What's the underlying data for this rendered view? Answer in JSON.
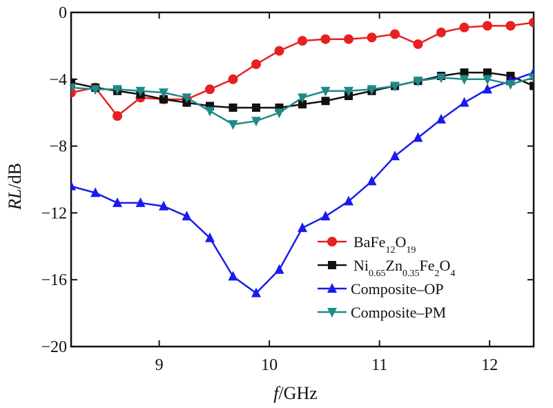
{
  "chart_data": {
    "type": "line",
    "xlabel": "f/GHz",
    "ylabel": "RL/dB",
    "xlim": [
      8.2,
      12.4
    ],
    "ylim": [
      -20,
      0
    ],
    "x_ticks": [
      9,
      10,
      11,
      12
    ],
    "y_ticks": [
      0,
      -4,
      -8,
      -12,
      -16,
      -20
    ],
    "x_tick_labels": [
      "9",
      "10",
      "11",
      "12"
    ],
    "y_tick_labels": [
      "0",
      "−4",
      "−8",
      "−12",
      "−16",
      "−20"
    ],
    "grid": false,
    "legend_position": "center-right",
    "series": [
      {
        "name": "BaFe12O19",
        "label_parts": [
          {
            "text": "BaFe",
            "sub": false
          },
          {
            "text": "12",
            "sub": true
          },
          {
            "text": "O",
            "sub": false
          },
          {
            "text": "19",
            "sub": true
          }
        ],
        "color": "#e82020",
        "marker": "circle",
        "x": [
          8.2,
          8.42,
          8.62,
          8.83,
          9.04,
          9.25,
          9.46,
          9.67,
          9.88,
          10.09,
          10.3,
          10.51,
          10.72,
          10.93,
          11.14,
          11.35,
          11.56,
          11.77,
          11.98,
          12.19,
          12.4
        ],
        "y": [
          -4.8,
          -4.5,
          -6.2,
          -5.1,
          -5.2,
          -5.2,
          -4.6,
          -4.0,
          -3.1,
          -2.3,
          -1.7,
          -1.6,
          -1.6,
          -1.5,
          -1.3,
          -1.9,
          -1.2,
          -0.9,
          -0.8,
          -0.8,
          -0.6
        ]
      },
      {
        "name": "Ni0.65Zn0.35Fe2O4",
        "label_parts": [
          {
            "text": "Ni",
            "sub": false
          },
          {
            "text": "0.65",
            "sub": true
          },
          {
            "text": "Zn",
            "sub": false
          },
          {
            "text": "0.35",
            "sub": true
          },
          {
            "text": "Fe",
            "sub": false
          },
          {
            "text": "2",
            "sub": true
          },
          {
            "text": "O",
            "sub": false
          },
          {
            "text": "4",
            "sub": true
          }
        ],
        "color": "#111111",
        "marker": "square",
        "x": [
          8.2,
          8.42,
          8.62,
          8.83,
          9.04,
          9.25,
          9.46,
          9.67,
          9.88,
          10.09,
          10.3,
          10.51,
          10.72,
          10.93,
          11.14,
          11.35,
          11.56,
          11.77,
          11.98,
          12.19,
          12.4
        ],
        "y": [
          -4.2,
          -4.5,
          -4.7,
          -4.9,
          -5.2,
          -5.4,
          -5.6,
          -5.7,
          -5.7,
          -5.7,
          -5.5,
          -5.3,
          -5.0,
          -4.7,
          -4.4,
          -4.1,
          -3.8,
          -3.6,
          -3.6,
          -3.8,
          -4.4
        ]
      },
      {
        "name": "Composite–OP",
        "label_parts": [
          {
            "text": "Composite–OP",
            "sub": false
          }
        ],
        "color": "#1a1aee",
        "marker": "triangle-up",
        "x": [
          8.2,
          8.42,
          8.62,
          8.83,
          9.04,
          9.25,
          9.46,
          9.67,
          9.88,
          10.09,
          10.3,
          10.51,
          10.72,
          10.93,
          11.14,
          11.35,
          11.56,
          11.77,
          11.98,
          12.19,
          12.4
        ],
        "y": [
          -10.4,
          -10.8,
          -11.4,
          -11.4,
          -11.6,
          -12.2,
          -13.5,
          -15.8,
          -16.8,
          -15.4,
          -12.9,
          -12.2,
          -11.3,
          -10.1,
          -8.6,
          -7.5,
          -6.4,
          -5.4,
          -4.6,
          -4.1,
          -3.6
        ]
      },
      {
        "name": "Composite–PM",
        "label_parts": [
          {
            "text": "Composite–PM",
            "sub": false
          }
        ],
        "color": "#1f8a86",
        "marker": "triangle-down",
        "x": [
          8.2,
          8.42,
          8.62,
          8.83,
          9.04,
          9.25,
          9.46,
          9.67,
          9.88,
          10.09,
          10.3,
          10.51,
          10.72,
          10.93,
          11.14,
          11.35,
          11.56,
          11.77,
          11.98,
          12.19,
          12.4
        ],
        "y": [
          -4.5,
          -4.6,
          -4.6,
          -4.7,
          -4.8,
          -5.1,
          -5.9,
          -6.7,
          -6.5,
          -6.0,
          -5.1,
          -4.7,
          -4.7,
          -4.6,
          -4.4,
          -4.1,
          -3.9,
          -4.0,
          -4.0,
          -4.3,
          -3.9
        ]
      }
    ]
  }
}
